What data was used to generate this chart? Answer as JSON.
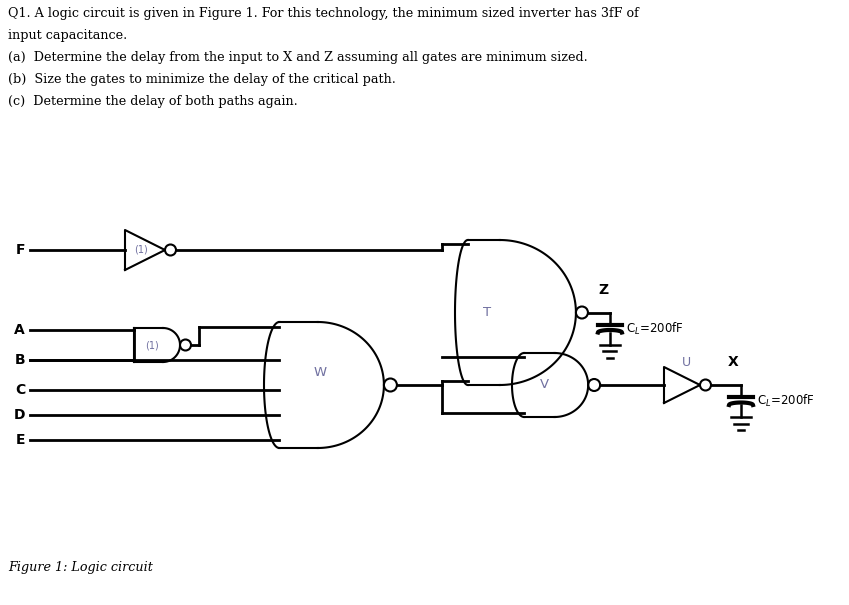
{
  "background_color": "#ffffff",
  "line_color": "#000000",
  "text_color": "#000000",
  "gate_label_color": "#7070a0",
  "question_lines": [
    "Q1. A logic circuit is given in Figure 1. For this technology, the minimum sized inverter has 3fF of",
    "input capacitance.",
    "(a)  Determine the delay from the input to X and Z assuming all gates are minimum sized.",
    "(b)  Size the gates to minimize the delay of the critical path.",
    "(c)  Determine the delay of both paths again."
  ],
  "figure_caption": "Figure 1: Logic circuit",
  "lw_thin": 1.5,
  "lw_thick": 2.5,
  "lw_wire": 2.0
}
